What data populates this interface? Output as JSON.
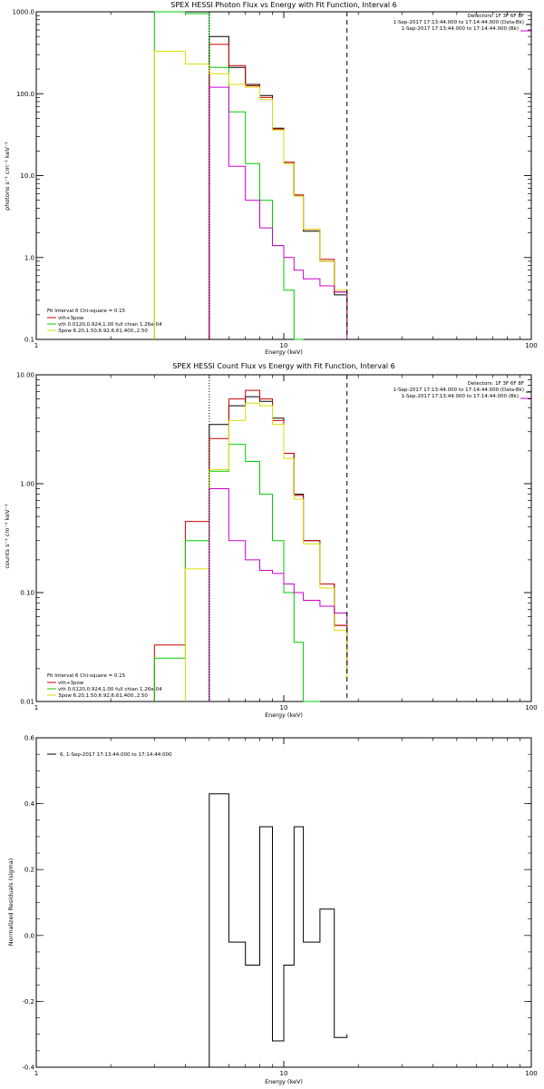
{
  "chart_data": [
    {
      "type": "line",
      "title": "SPEX HESSI Photon Flux vs Energy with Fit Function, Interval 6",
      "xlabel": "Energy (keV)",
      "ylabel": "photons s⁻¹ cm⁻² keV⁻¹",
      "xscale": "log",
      "yscale": "log",
      "xlim": [
        1,
        100
      ],
      "ylim": [
        0.1,
        1000
      ],
      "x_tick_labels": [
        "1",
        "10",
        "100"
      ],
      "y_tick_labels": [
        "0.1",
        "1.0",
        "10.0",
        "100.0",
        "1000.0"
      ],
      "x_tick_values": [
        1,
        10,
        100
      ],
      "y_tick_values": [
        0.1,
        1,
        10,
        100,
        1000
      ],
      "info": [
        "Detectors: 1F 3F 6F 8F",
        "1-Sep-2017 17:13:44.000 to 17:14:44.000 (Data-Bk)",
        "1-Sep-2017 17:13:44.000 to 17:14:44.000 (Bk)"
      ],
      "fit_text": [
        "Fit Interval 6   Chi-square = 0.15",
        "vth+3pow",
        "vth 0.0120,0.924,1.00  full chian 1.26e-04",
        "3pow 6.20,1.50,6.92,6.61,400.,2.50"
      ],
      "vlines": [
        {
          "x": 5.0,
          "style": "dotted",
          "color": "#000000"
        },
        {
          "x": 18.0,
          "style": "dashed",
          "color": "#000000"
        }
      ],
      "energy_edges": [
        3,
        4,
        5,
        6,
        7,
        8,
        9,
        10,
        11,
        12,
        14,
        16,
        18
      ],
      "series": [
        {
          "name": "",
          "color": "#000000",
          "values": [
            null,
            null,
            500,
            210,
            130,
            95,
            38,
            14.5,
            5.8,
            2.1,
            0.9,
            0.35,
            0.15
          ]
        },
        {
          "name": "",
          "color": "#cc0000",
          "values": [
            null,
            null,
            400,
            220,
            125,
            90,
            37,
            14.5,
            5.8,
            2.2,
            0.95,
            0.38,
            0.13
          ]
        },
        {
          "name": "",
          "color": "#00cc00",
          "values": [
            1000,
            950,
            210,
            60,
            14,
            5,
            1.4,
            0.4,
            0.1,
            null,
            null,
            null,
            null
          ]
        },
        {
          "name": "",
          "color": "#dddd00",
          "values": [
            330,
            230,
            175,
            130,
            120,
            85,
            36,
            14,
            5.6,
            2.2,
            0.9,
            0.4,
            0.12
          ]
        },
        {
          "name": "",
          "color": "#cc00cc",
          "values": [
            null,
            null,
            120,
            13,
            5,
            2.3,
            1.4,
            1,
            0.7,
            0.55,
            0.45,
            0.38,
            null
          ]
        }
      ]
    },
    {
      "type": "line",
      "title": "SPEX HESSI Count Flux vs Energy with Fit Function, Interval 6",
      "xlabel": "Energy (keV)",
      "ylabel": "counts s⁻¹ cm⁻² keV⁻¹",
      "xscale": "log",
      "yscale": "log",
      "xlim": [
        1,
        100
      ],
      "ylim": [
        0.01,
        10
      ],
      "x_tick_labels": [
        "1",
        "10",
        "100"
      ],
      "y_tick_labels": [
        "0.01",
        "0.10",
        "1.00",
        "10.00"
      ],
      "x_tick_values": [
        1,
        10,
        100
      ],
      "y_tick_values": [
        0.01,
        0.1,
        1,
        10
      ],
      "info": [
        "Detectors: 1F 3F 6F 8F",
        "1-Sep-2017 17:13:44.000 to 17:14:44.000 (Data-Bk)",
        "1-Sep-2017 17:13:44.000 to 17:14:44.000 (Bk)"
      ],
      "fit_text": [
        "Fit Interval 6   Chi-square = 0.15",
        "vth+3pow",
        "vth 0.0120,0.924,1.00  full chian 1.26e-04",
        "3pow 6.20,1.50,6.92,6.61,400.,2.50"
      ],
      "vlines": [
        {
          "x": 5.0,
          "style": "dotted",
          "color": "#000000"
        },
        {
          "x": 18.0,
          "style": "dashed",
          "color": "#000000"
        }
      ],
      "energy_edges": [
        3,
        4,
        5,
        6,
        7,
        8,
        9,
        10,
        11,
        12,
        14,
        16,
        18
      ],
      "series": [
        {
          "name": "",
          "color": "#000000",
          "values": [
            null,
            null,
            3.5,
            5.2,
            6.3,
            5.7,
            4.0,
            1.9,
            0.8,
            0.3,
            0.12,
            0.05,
            0.018
          ]
        },
        {
          "name": "",
          "color": "#cc0000",
          "values": [
            0.033,
            0.45,
            2.6,
            6.0,
            7.2,
            6.0,
            3.8,
            1.9,
            0.78,
            0.3,
            0.12,
            0.05,
            0.022
          ]
        },
        {
          "name": "",
          "color": "#00cc00",
          "values": [
            0.025,
            0.3,
            1.3,
            2.3,
            1.6,
            0.8,
            0.3,
            0.1,
            0.035,
            0.01,
            null,
            null,
            null
          ]
        },
        {
          "name": "",
          "color": "#dddd00",
          "values": [
            null,
            0.165,
            1.35,
            3.8,
            5.5,
            5.2,
            3.5,
            1.7,
            0.72,
            0.28,
            0.11,
            0.045,
            0.016
          ]
        },
        {
          "name": "",
          "color": "#cc00cc",
          "values": [
            null,
            null,
            0.9,
            0.3,
            0.2,
            0.16,
            0.15,
            0.12,
            0.1,
            0.085,
            0.075,
            0.065,
            0.055
          ]
        }
      ]
    },
    {
      "type": "line",
      "title": "",
      "xlabel": "Energy (keV)",
      "ylabel": "Normalized Residuals (sigma)",
      "xscale": "log",
      "yscale": "linear",
      "xlim": [
        1,
        100
      ],
      "ylim": [
        -0.4,
        0.6
      ],
      "x_tick_labels": [
        "1",
        "10",
        "100"
      ],
      "y_tick_labels": [
        "-0.4",
        "-0.2",
        "0.0",
        "0.2",
        "0.4",
        "0.6"
      ],
      "x_tick_values": [
        1,
        10,
        100
      ],
      "y_tick_values": [
        -0.4,
        -0.2,
        0,
        0.2,
        0.4,
        0.6
      ],
      "legend_entry": "6,  1-Sep-2017 17:13:44.000 to 17:14:44.000",
      "energy_edges": [
        5,
        6,
        7,
        8,
        9,
        10,
        11,
        12,
        14,
        16,
        18
      ],
      "series": [
        {
          "name": "6,  1-Sep-2017 17:13:44.000 to 17:14:44.000",
          "color": "#000000",
          "values": [
            0.43,
            -0.02,
            -0.09,
            0.33,
            -0.32,
            -0.09,
            0.33,
            -0.02,
            0.08,
            -0.31,
            -0.3
          ]
        }
      ]
    }
  ]
}
